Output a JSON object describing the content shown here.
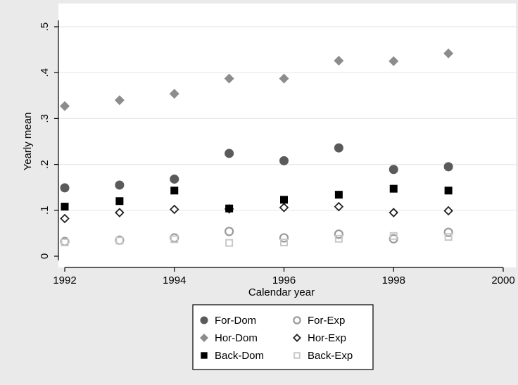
{
  "chart_data": {
    "type": "scatter",
    "xlabel": "Calendar year",
    "ylabel": "Yearly mean",
    "xlim": [
      1992,
      2000
    ],
    "ylim": [
      0,
      0.5
    ],
    "x_ticks": [
      1992,
      1994,
      1996,
      1998,
      2000
    ],
    "x_tick_labels": [
      "1992",
      "1994",
      "1996",
      "1998",
      "2000"
    ],
    "y_ticks": [
      0,
      0.1,
      0.2,
      0.3,
      0.4,
      0.5
    ],
    "y_tick_labels": [
      "0",
      ".1",
      ".2",
      ".3",
      ".4",
      ".5"
    ],
    "grid": true,
    "legend_position": "bottom",
    "series": [
      {
        "name": "For-Dom",
        "marker": "filled-circle",
        "color": "#5a5a5a",
        "x": [
          1992,
          1993,
          1994,
          1995,
          1996,
          1997,
          1998,
          1999
        ],
        "values": [
          0.149,
          0.155,
          0.168,
          0.224,
          0.208,
          0.236,
          0.189,
          0.195
        ]
      },
      {
        "name": "For-Exp",
        "marker": "hollow-circle",
        "color": "#9a9a9a",
        "x": [
          1992,
          1993,
          1994,
          1995,
          1996,
          1997,
          1998,
          1999
        ],
        "values": [
          0.032,
          0.035,
          0.04,
          0.054,
          0.04,
          0.048,
          0.038,
          0.052
        ]
      },
      {
        "name": "Hor-Dom",
        "marker": "filled-diamond",
        "color": "#8c8c8c",
        "x": [
          1992,
          1993,
          1994,
          1995,
          1996,
          1997,
          1998,
          1999
        ],
        "values": [
          0.327,
          0.34,
          0.354,
          0.387,
          0.387,
          0.426,
          0.425,
          0.442
        ]
      },
      {
        "name": "Hor-Exp",
        "marker": "hollow-diamond",
        "color": "#222222",
        "x": [
          1992,
          1993,
          1994,
          1995,
          1996,
          1997,
          1998,
          1999
        ],
        "values": [
          0.082,
          0.095,
          0.102,
          0.103,
          0.106,
          0.108,
          0.095,
          0.099
        ]
      },
      {
        "name": "Back-Dom",
        "marker": "filled-square",
        "color": "#000000",
        "x": [
          1992,
          1993,
          1994,
          1995,
          1996,
          1997,
          1998,
          1999
        ],
        "values": [
          0.108,
          0.12,
          0.143,
          0.104,
          0.123,
          0.134,
          0.147,
          0.143
        ]
      },
      {
        "name": "Back-Exp",
        "marker": "hollow-square",
        "color": "#c8c8c8",
        "x": [
          1992,
          1993,
          1994,
          1995,
          1996,
          1997,
          1998,
          1999
        ],
        "values": [
          0.03,
          0.034,
          0.037,
          0.029,
          0.03,
          0.038,
          0.044,
          0.042
        ]
      }
    ]
  },
  "colors": {
    "page_background": "#eaeaea",
    "plot_background": "#ffffff",
    "gridline": "#e8e8e8",
    "axis": "#000000"
  }
}
